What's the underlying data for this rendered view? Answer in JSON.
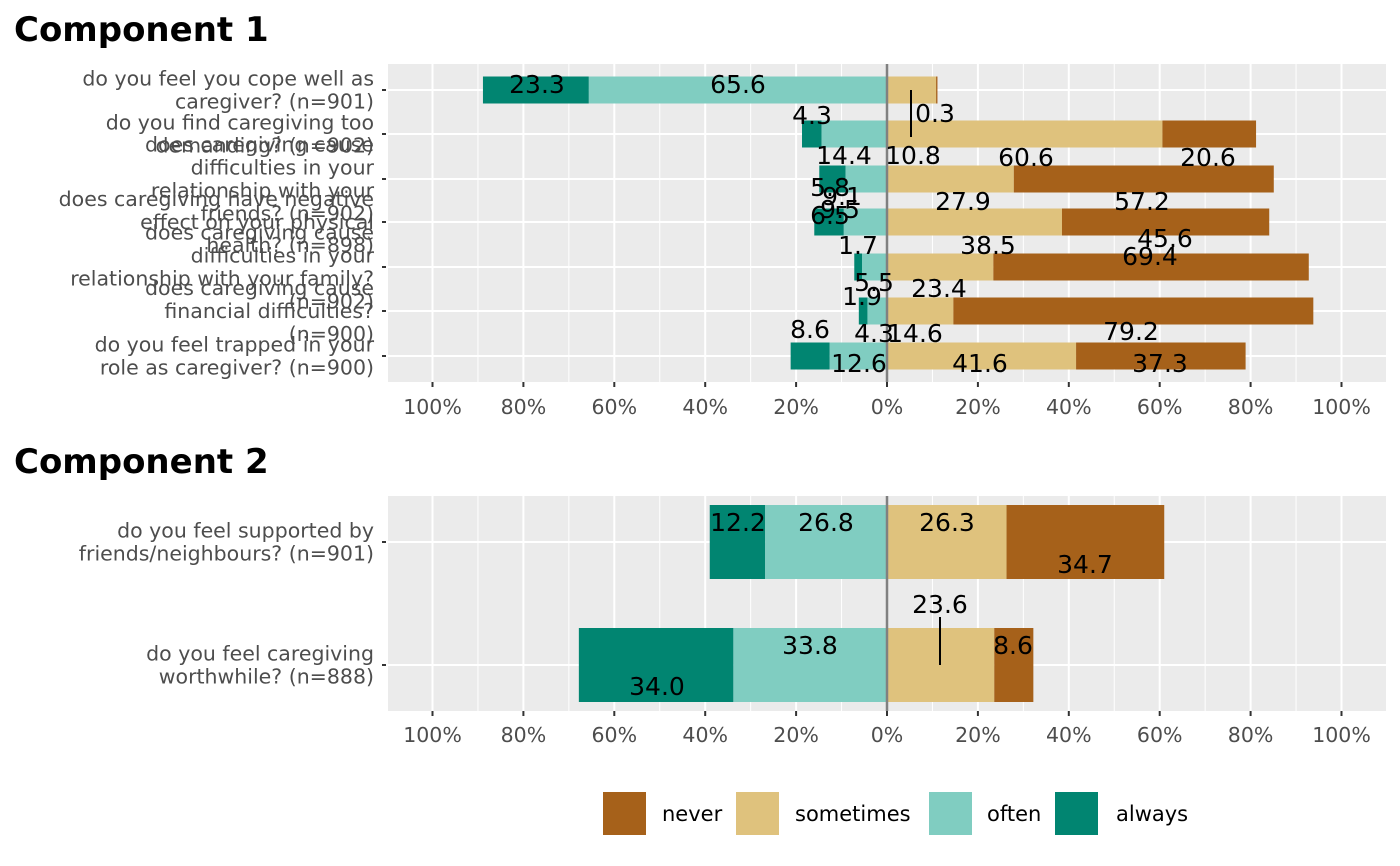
{
  "legend": {
    "items": [
      {
        "key": "never",
        "label": "never",
        "color": "#A6611A"
      },
      {
        "key": "sometimes",
        "label": "sometimes",
        "color": "#DFC27D"
      },
      {
        "key": "often",
        "label": "often",
        "color": "#80CDC1"
      },
      {
        "key": "always",
        "label": "always",
        "color": "#018571"
      }
    ]
  },
  "chart_data": [
    {
      "type": "bar",
      "orientation": "horizontal-diverging",
      "title": "Component 1",
      "xlim": [
        -100,
        100
      ],
      "tick_labels": [
        "100%",
        "80%",
        "60%",
        "40%",
        "20%",
        "0%",
        "20%",
        "40%",
        "60%",
        "80%",
        "100%"
      ],
      "categories": [
        "do you feel you cope well as caregiver? (n=901)",
        "do you find caregiving too demanding? (n=902)",
        "does caregiving cause difficulties in your relationship with your friends? (n=902)",
        "does caregiving have negative effect on your physical health? (n=898)",
        "does caregiving cause difficulties in your relationship with your family? (n=902)",
        "does caregiving cause financial difficulties? (n=900)",
        "do you feel trapped in your role as caregiver? (n=900)"
      ],
      "series": [
        {
          "name": "always",
          "values": [
            23.3,
            4.3,
            5.8,
            6.5,
            1.7,
            1.9,
            8.6
          ]
        },
        {
          "name": "often",
          "values": [
            65.6,
            14.4,
            9.1,
            9.5,
            5.5,
            4.3,
            12.6
          ]
        },
        {
          "name": "sometimes",
          "values": [
            10.8,
            60.6,
            27.9,
            38.5,
            23.4,
            14.6,
            41.6
          ]
        },
        {
          "name": "never",
          "values": [
            0.3,
            20.6,
            57.2,
            45.6,
            69.4,
            79.2,
            37.3
          ]
        }
      ]
    },
    {
      "type": "bar",
      "orientation": "horizontal-diverging",
      "title": "Component 2",
      "xlim": [
        -100,
        100
      ],
      "tick_labels": [
        "100%",
        "80%",
        "60%",
        "40%",
        "20%",
        "0%",
        "20%",
        "40%",
        "60%",
        "80%",
        "100%"
      ],
      "categories": [
        "do you feel supported by friends/neighbours? (n=901)",
        "do you feel caregiving worthwhile? (n=888)"
      ],
      "series": [
        {
          "name": "always",
          "values": [
            12.2,
            34.0
          ]
        },
        {
          "name": "often",
          "values": [
            26.8,
            33.8
          ]
        },
        {
          "name": "sometimes",
          "values": [
            26.3,
            23.6
          ]
        },
        {
          "name": "never",
          "values": [
            34.7,
            8.6
          ]
        }
      ]
    }
  ]
}
